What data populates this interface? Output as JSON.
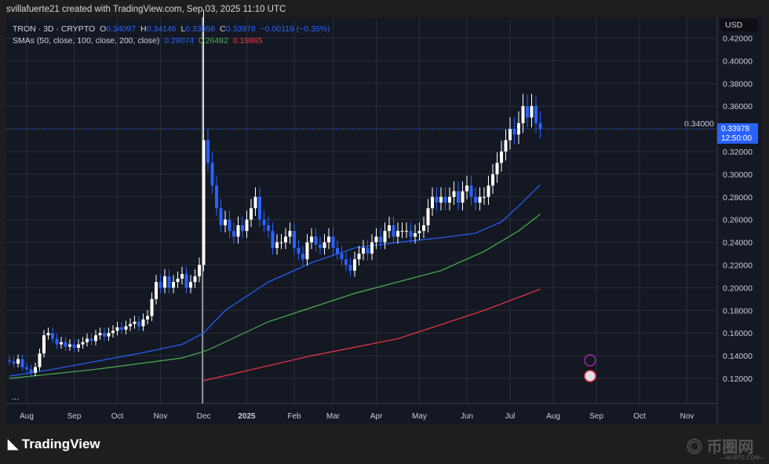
{
  "credit": "svillafuerte21 created with TradingView.com, Sep 03, 2025 11:10 UTC",
  "legend": {
    "symbol": "TRON · 3D · CRYPTO",
    "o_label": "O",
    "o": "0.34097",
    "h_label": "H",
    "h": "0.34146",
    "l_label": "L",
    "l": "0.33398",
    "c_label": "C",
    "c": "0.33978",
    "change": "−0.00119 (−0.35%)",
    "sma_label": "SMAs (50, close, 100, close, 200, close)",
    "sma50": "0.29074",
    "sma100": "0.26482",
    "sma200": "0.19865"
  },
  "currency": "USD",
  "last_price": {
    "value": "0.33978",
    "countdown": "12:50:00"
  },
  "more": "...",
  "brand": "TradingView",
  "watermark": {
    "text": "币圈网",
    "sub": "—ALIBTC.COM—"
  },
  "colors": {
    "up": "#ffffff",
    "down": "#2962ff",
    "sma50": "#2962ff",
    "sma100": "#4caf50",
    "sma200": "#f23645",
    "grid": "#2a2e39"
  },
  "chart_data": {
    "type": "candlestick",
    "title": "TRON · 3D · CRYPTO",
    "y_ticks": [
      0.12,
      0.14,
      0.16,
      0.18,
      0.2,
      0.22,
      0.24,
      0.26,
      0.28,
      0.3,
      0.32,
      0.34,
      0.36,
      0.38,
      0.4,
      0.42
    ],
    "y_tick_labels": [
      "0.12000",
      "0.14000",
      "0.16000",
      "0.18000",
      "0.20000",
      "0.22000",
      "0.24000",
      "0.26000",
      "0.28000",
      "0.30000",
      "0.32000",
      "0.34000",
      "0.36000",
      "0.38000",
      "0.40000",
      "0.42000"
    ],
    "x_labels": [
      "Aug",
      "Sep",
      "Oct",
      "Nov",
      "Dec",
      "2025",
      "Feb",
      "Mar",
      "Apr",
      "May",
      "Jun",
      "Jul",
      "Aug",
      "Sep",
      "Oct",
      "Nov"
    ],
    "x_label_candle_index": [
      4,
      15,
      25,
      35,
      45,
      55,
      66,
      75,
      85,
      95,
      106,
      116,
      126,
      136,
      146,
      157
    ],
    "open_first": 0.136,
    "closes": [
      0.135,
      0.133,
      0.137,
      0.13,
      0.128,
      0.125,
      0.13,
      0.142,
      0.158,
      0.16,
      0.155,
      0.15,
      0.152,
      0.148,
      0.15,
      0.147,
      0.15,
      0.152,
      0.155,
      0.153,
      0.158,
      0.16,
      0.157,
      0.16,
      0.162,
      0.165,
      0.163,
      0.166,
      0.168,
      0.17,
      0.166,
      0.172,
      0.175,
      0.19,
      0.205,
      0.2,
      0.21,
      0.2,
      0.205,
      0.208,
      0.212,
      0.2,
      0.205,
      0.21,
      0.22,
      0.33,
      0.31,
      0.29,
      0.27,
      0.255,
      0.26,
      0.25,
      0.245,
      0.255,
      0.25,
      0.26,
      0.27,
      0.28,
      0.26,
      0.255,
      0.25,
      0.235,
      0.24,
      0.24,
      0.245,
      0.25,
      0.235,
      0.23,
      0.225,
      0.24,
      0.245,
      0.238,
      0.235,
      0.24,
      0.245,
      0.235,
      0.23,
      0.225,
      0.22,
      0.215,
      0.225,
      0.23,
      0.235,
      0.23,
      0.24,
      0.245,
      0.24,
      0.25,
      0.255,
      0.245,
      0.25,
      0.25,
      0.25,
      0.245,
      0.248,
      0.25,
      0.255,
      0.27,
      0.28,
      0.275,
      0.28,
      0.275,
      0.28,
      0.285,
      0.275,
      0.285,
      0.29,
      0.28,
      0.275,
      0.28,
      0.28,
      0.29,
      0.3,
      0.31,
      0.32,
      0.33,
      0.34,
      0.335,
      0.345,
      0.36,
      0.35,
      0.36,
      0.345,
      0.34
    ],
    "notable_highs": {
      "45": 0.445,
      "120": 0.37,
      "122": 0.368
    },
    "series": [
      {
        "name": "SMA 50",
        "value_last": 0.29074,
        "points": [
          [
            0,
            0.122
          ],
          [
            10,
            0.128
          ],
          [
            20,
            0.135
          ],
          [
            30,
            0.142
          ],
          [
            40,
            0.15
          ],
          [
            45,
            0.16
          ],
          [
            50,
            0.18
          ],
          [
            60,
            0.205
          ],
          [
            70,
            0.222
          ],
          [
            80,
            0.235
          ],
          [
            90,
            0.24
          ],
          [
            100,
            0.244
          ],
          [
            108,
            0.248
          ],
          [
            114,
            0.258
          ],
          [
            118,
            0.272
          ],
          [
            123,
            0.2907
          ]
        ]
      },
      {
        "name": "SMA 100",
        "value_last": 0.26482,
        "points": [
          [
            0,
            0.12
          ],
          [
            20,
            0.128
          ],
          [
            40,
            0.138
          ],
          [
            46,
            0.145
          ],
          [
            60,
            0.17
          ],
          [
            80,
            0.195
          ],
          [
            100,
            0.215
          ],
          [
            110,
            0.232
          ],
          [
            118,
            0.25
          ],
          [
            123,
            0.2648
          ]
        ]
      },
      {
        "name": "SMA 200",
        "value_last": 0.19865,
        "points": [
          [
            45,
            0.118
          ],
          [
            70,
            0.14
          ],
          [
            90,
            0.155
          ],
          [
            110,
            0.18
          ],
          [
            123,
            0.1987
          ]
        ]
      }
    ]
  }
}
